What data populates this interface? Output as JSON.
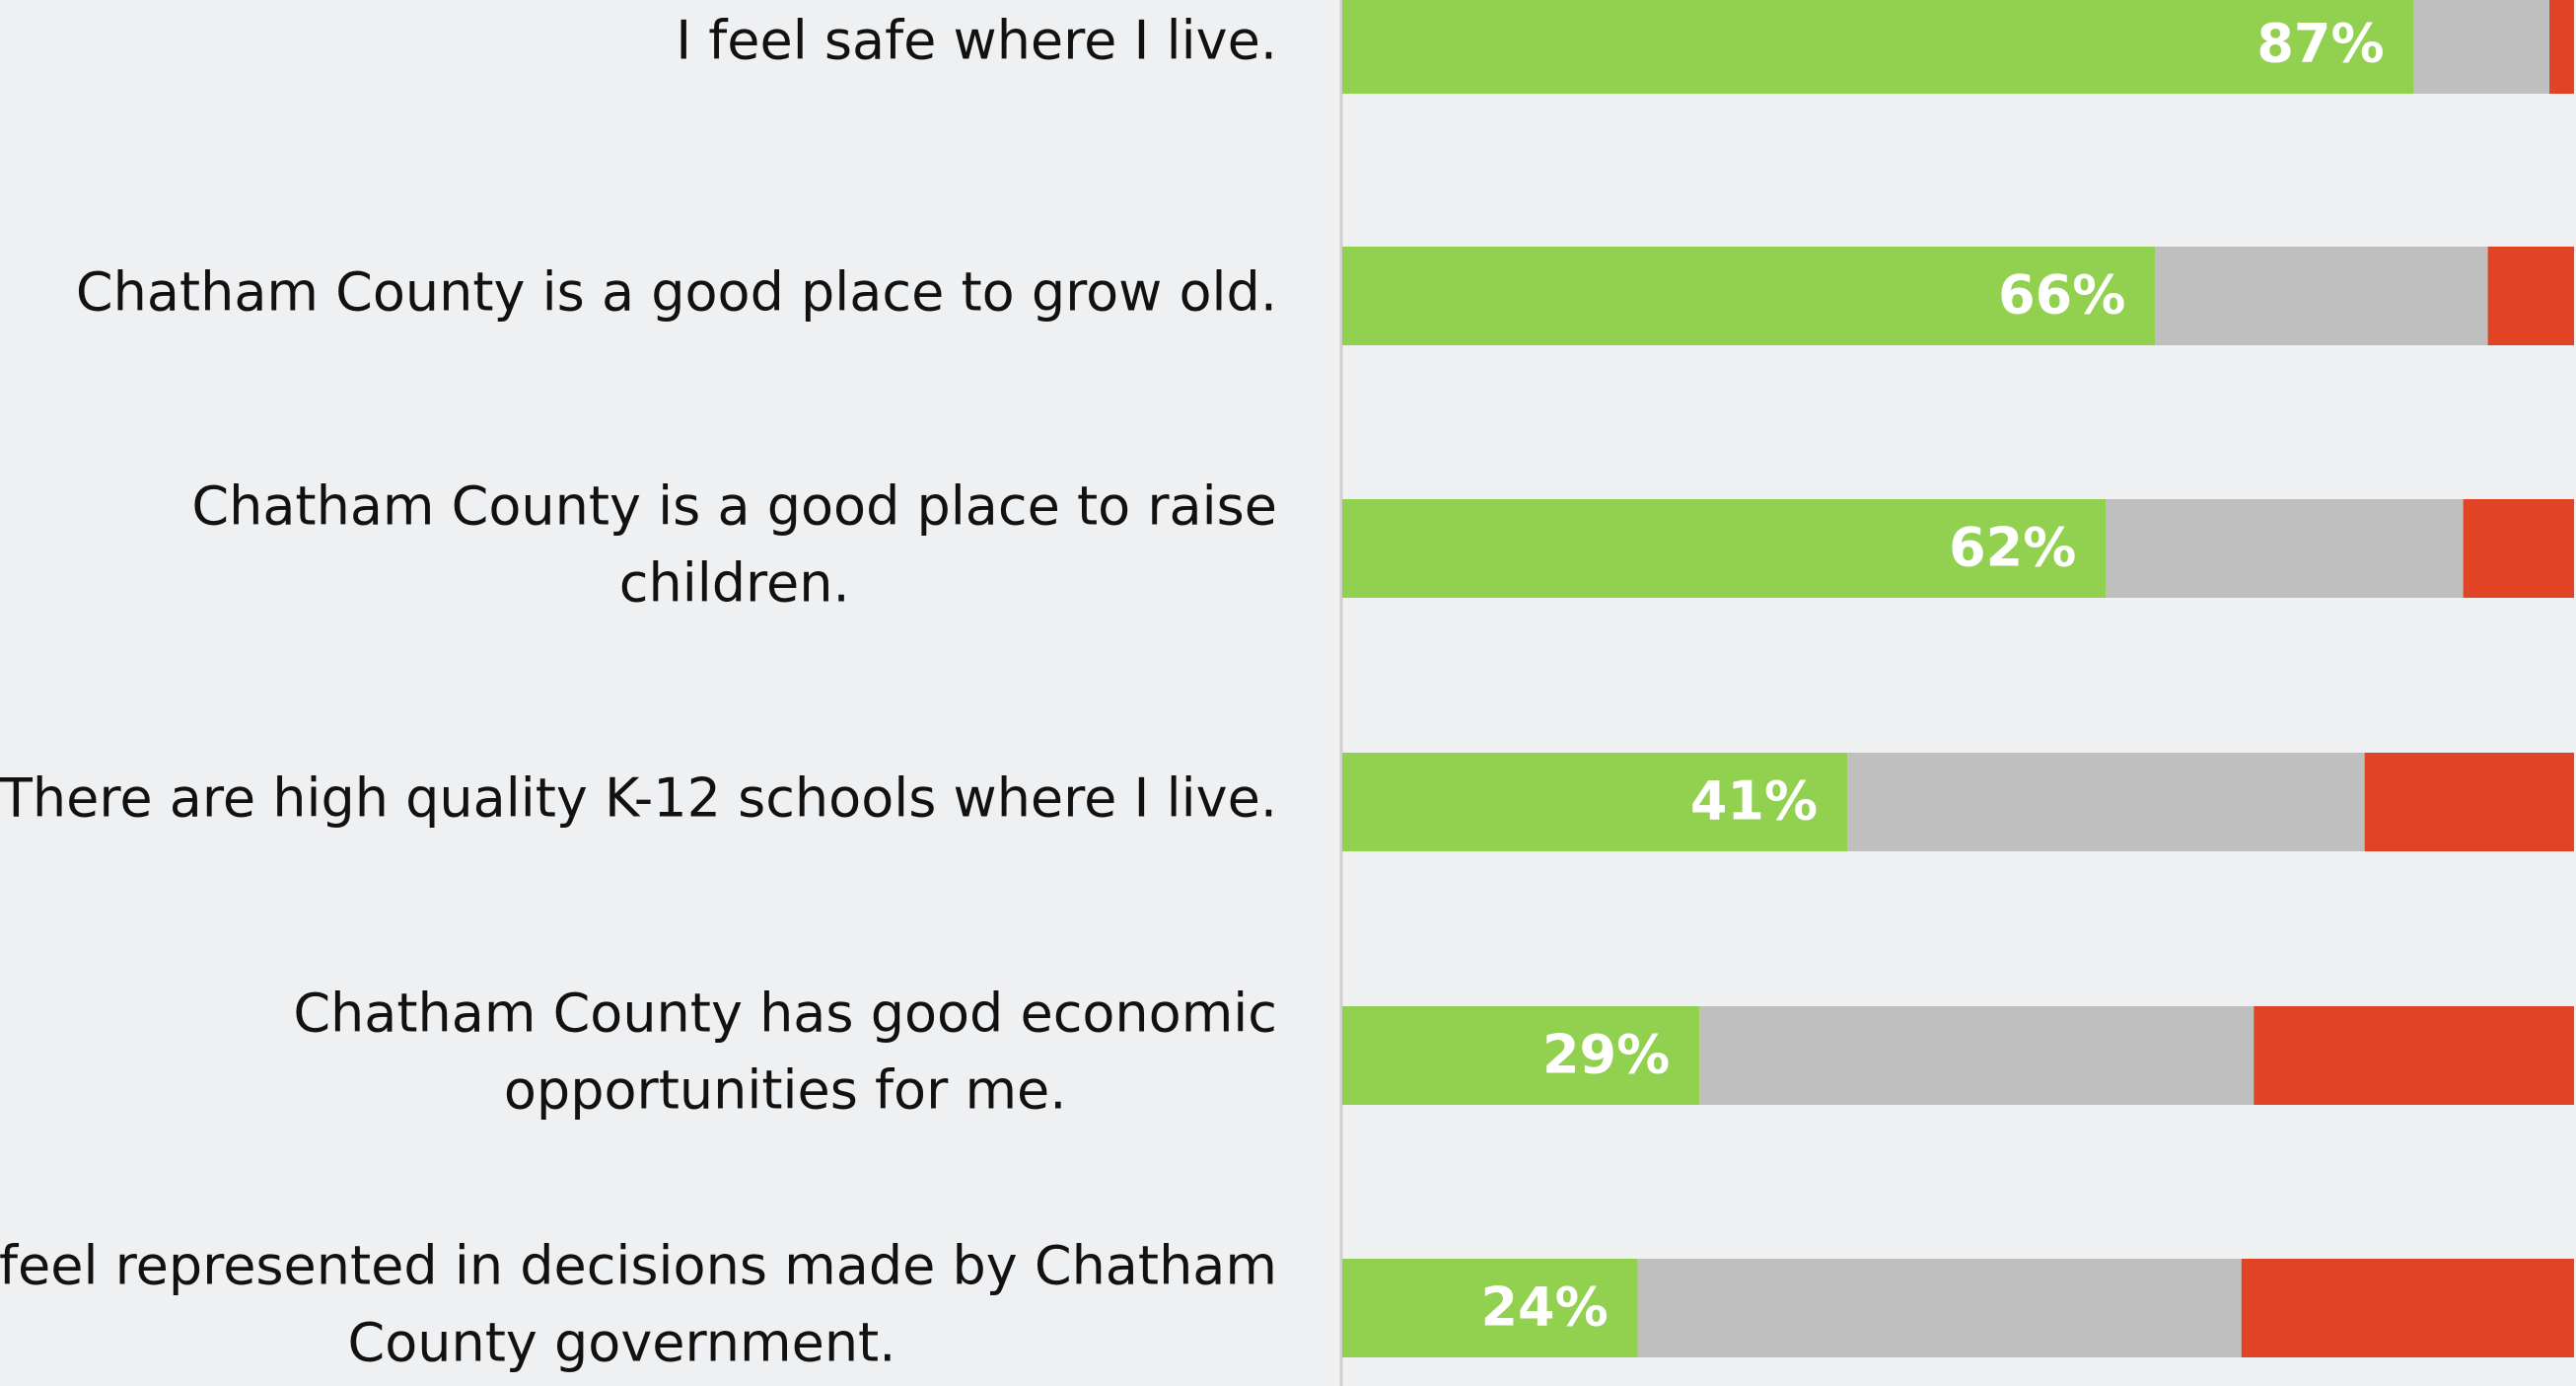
{
  "chart_data": {
    "type": "stacked-barh",
    "categories": [
      [
        "I feel safe where I live."
      ],
      [
        "Chatham County is a good place to grow old."
      ],
      [
        "Chatham County is a good place to raise",
        "children."
      ],
      [
        "There are high quality K-12 schools where I live."
      ],
      [
        "Chatham County has good economic",
        "opportunities for me."
      ],
      [
        "I feel represented in decisions made by Chatham",
        "County government."
      ]
    ],
    "series": [
      {
        "color": "#92d050",
        "values": [
          87,
          66,
          62,
          41,
          29,
          24
        ],
        "value_labels": [
          "87%",
          "66%",
          "62%",
          "41%",
          "29%",
          "24%"
        ]
      },
      {
        "color": "#bfbfbf",
        "values": [
          11,
          27,
          29,
          42,
          45,
          49
        ]
      },
      {
        "color": "#e04424",
        "values": [
          2,
          7,
          9,
          17,
          26,
          27
        ]
      }
    ],
    "xlim": [
      0,
      100
    ]
  }
}
